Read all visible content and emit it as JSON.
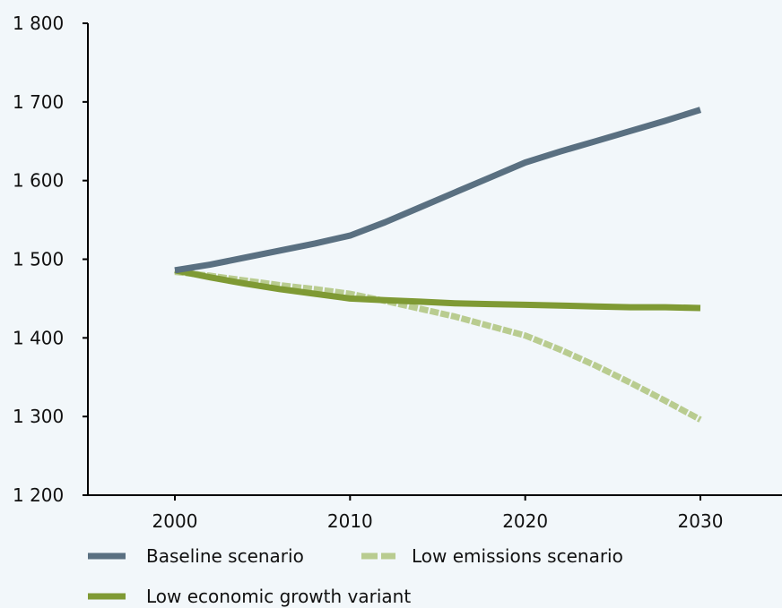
{
  "chart_data": {
    "type": "line",
    "title": "",
    "xlabel": "",
    "ylabel": "",
    "xlim": [
      1995,
      2035
    ],
    "ylim": [
      1200,
      1800
    ],
    "x_ticks": [
      2000,
      2010,
      2020,
      2030
    ],
    "x_tick_labels": [
      "2000",
      "2010",
      "2020",
      "2030"
    ],
    "y_ticks": [
      1200,
      1300,
      1400,
      1500,
      1600,
      1700,
      1800
    ],
    "y_tick_labels": [
      "1 200",
      "1 300",
      "1 400",
      "1 500",
      "1 600",
      "1 700",
      "1 800"
    ],
    "grid": false,
    "legend_position": "bottom",
    "series": [
      {
        "name": "Baseline scenario",
        "color": "#5a7081",
        "dashed": false,
        "x": [
          2000,
          2002,
          2004,
          2006,
          2008,
          2010,
          2012,
          2014,
          2016,
          2018,
          2020,
          2022,
          2024,
          2026,
          2028,
          2030
        ],
        "y": [
          1486,
          1493,
          1502,
          1511,
          1520,
          1530,
          1547,
          1566,
          1585,
          1604,
          1623,
          1637,
          1650,
          1663,
          1676,
          1690
        ]
      },
      {
        "name": "Low emissions scenario",
        "color": "#b9cc90",
        "dashed": true,
        "x": [
          2000,
          2002,
          2004,
          2006,
          2008,
          2010,
          2012,
          2014,
          2016,
          2018,
          2020,
          2022,
          2024,
          2026,
          2028,
          2030
        ],
        "y": [
          1484,
          1479,
          1473,
          1467,
          1462,
          1456,
          1447,
          1437,
          1427,
          1415,
          1403,
          1385,
          1365,
          1343,
          1320,
          1296
        ]
      },
      {
        "name": "Low economic growth variant",
        "color": "#7f9a34",
        "dashed": false,
        "x": [
          2000,
          2002,
          2004,
          2006,
          2008,
          2010,
          2012,
          2014,
          2016,
          2018,
          2020,
          2022,
          2024,
          2026,
          2028,
          2030
        ],
        "y": [
          1486,
          1477,
          1469,
          1462,
          1456,
          1450,
          1448,
          1446,
          1444,
          1443,
          1442,
          1441,
          1440,
          1439,
          1439,
          1438
        ]
      }
    ]
  }
}
